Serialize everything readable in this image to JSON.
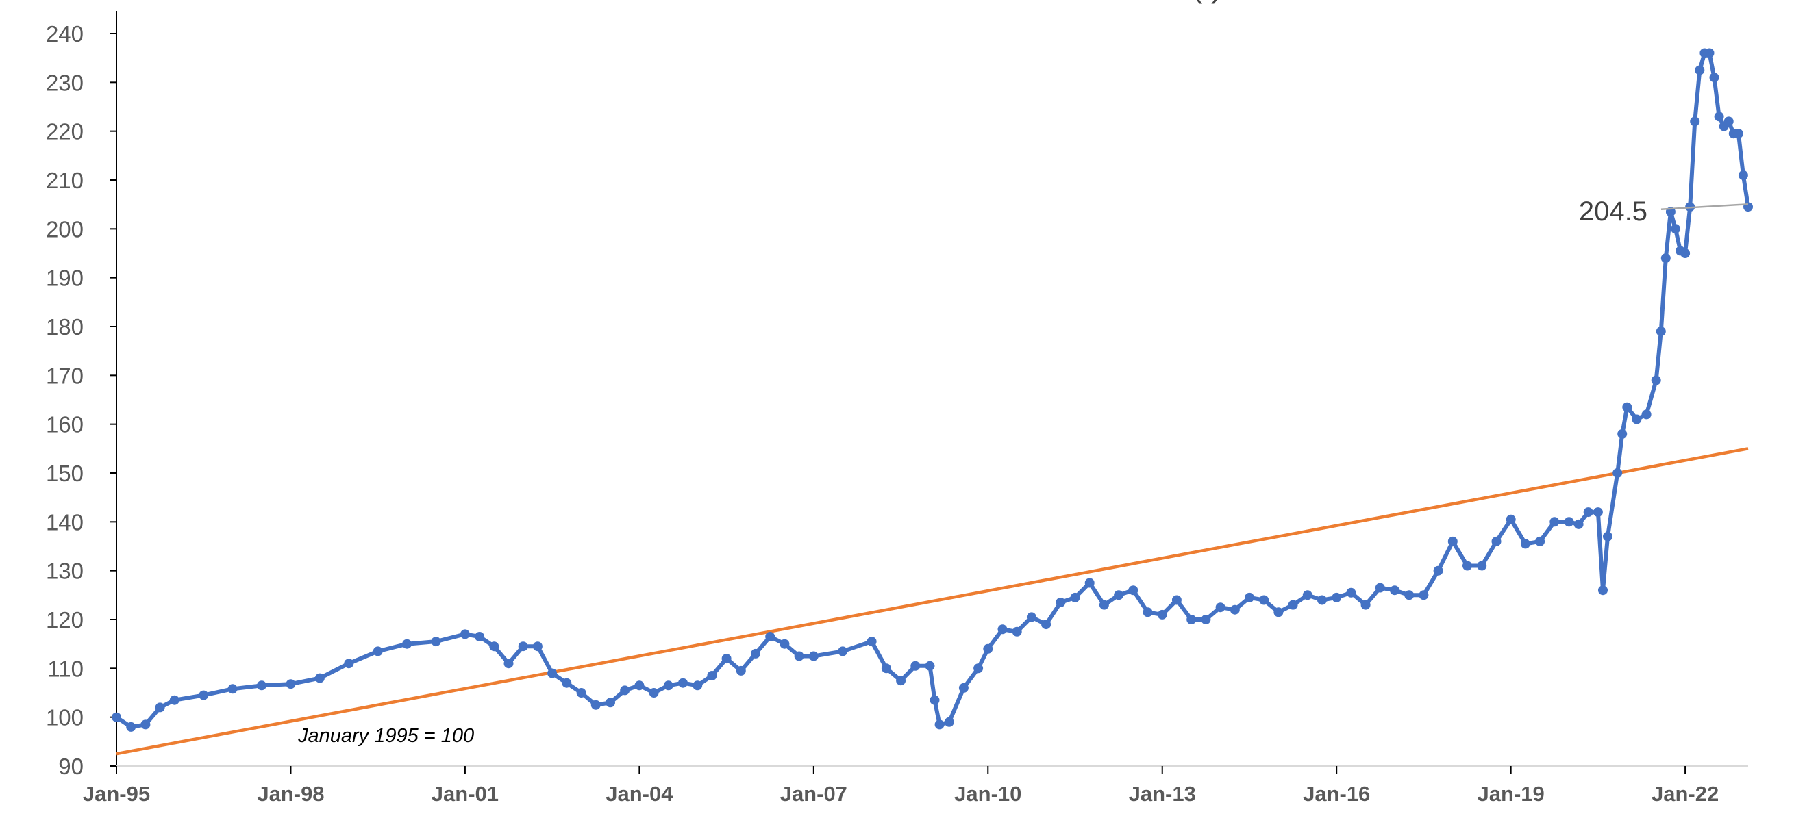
{
  "chart_data": {
    "type": "line",
    "title_fragment": "(                    )",
    "xlabel": "",
    "ylabel": "",
    "x_tick_labels": [
      "Jan-95",
      "Jan-98",
      "Jan-01",
      "Jan-04",
      "Jan-07",
      "Jan-10",
      "Jan-13",
      "Jan-16",
      "Jan-19",
      "Jan-22"
    ],
    "y_tick_labels": [
      "90",
      "100",
      "110",
      "120",
      "130",
      "140",
      "150",
      "160",
      "170",
      "180",
      "190",
      "200",
      "210",
      "220",
      "230",
      "240"
    ],
    "ylim": [
      90,
      240
    ],
    "xlim": [
      "1995-01",
      "2022-10"
    ],
    "grid": false,
    "annotation": "January 1995 = 100",
    "end_label": "204.5",
    "colors": {
      "index": "#4472C4",
      "trend": "#ED7D31",
      "leader": "#A6A6A6"
    },
    "series": [
      {
        "style": "line-with-markers",
        "color": "#4472C4",
        "points": [
          [
            "1995-01",
            100
          ],
          [
            "1995-04",
            98
          ],
          [
            "1995-07",
            98.5
          ],
          [
            "1995-10",
            102
          ],
          [
            "1996-01",
            103.5
          ],
          [
            "1996-07",
            104.5
          ],
          [
            "1997-01",
            105.8
          ],
          [
            "1997-07",
            106.5
          ],
          [
            "1998-01",
            106.8
          ],
          [
            "1998-07",
            108
          ],
          [
            "1999-01",
            111
          ],
          [
            "1999-07",
            113.5
          ],
          [
            "2000-01",
            115
          ],
          [
            "2000-07",
            115.5
          ],
          [
            "2001-01",
            117
          ],
          [
            "2001-04",
            116.5
          ],
          [
            "2001-07",
            114.5
          ],
          [
            "2001-10",
            111
          ],
          [
            "2002-01",
            114.5
          ],
          [
            "2002-04",
            114.5
          ],
          [
            "2002-07",
            109
          ],
          [
            "2002-10",
            107
          ],
          [
            "2003-01",
            105
          ],
          [
            "2003-04",
            102.5
          ],
          [
            "2003-07",
            103
          ],
          [
            "2003-10",
            105.5
          ],
          [
            "2004-01",
            106.5
          ],
          [
            "2004-04",
            105
          ],
          [
            "2004-07",
            106.5
          ],
          [
            "2004-10",
            107
          ],
          [
            "2005-01",
            106.5
          ],
          [
            "2005-04",
            108.5
          ],
          [
            "2005-07",
            112
          ],
          [
            "2005-10",
            109.5
          ],
          [
            "2006-01",
            113
          ],
          [
            "2006-04",
            116.5
          ],
          [
            "2006-07",
            115
          ],
          [
            "2006-10",
            112.5
          ],
          [
            "2007-01",
            112.5
          ],
          [
            "2007-07",
            113.5
          ],
          [
            "2008-01",
            115.5
          ],
          [
            "2008-04",
            110
          ],
          [
            "2008-07",
            107.5
          ],
          [
            "2008-10",
            110.5
          ],
          [
            "2009-01",
            110.5
          ],
          [
            "2009-02",
            103.5
          ],
          [
            "2009-03",
            98.5
          ],
          [
            "2009-05",
            99
          ],
          [
            "2009-08",
            106
          ],
          [
            "2009-11",
            110
          ],
          [
            "2010-01",
            114
          ],
          [
            "2010-04",
            118
          ],
          [
            "2010-07",
            117.5
          ],
          [
            "2010-10",
            120.5
          ],
          [
            "2011-01",
            119
          ],
          [
            "2011-04",
            123.5
          ],
          [
            "2011-07",
            124.5
          ],
          [
            "2011-10",
            127.5
          ],
          [
            "2012-01",
            123
          ],
          [
            "2012-04",
            125
          ],
          [
            "2012-07",
            126
          ],
          [
            "2012-10",
            121.5
          ],
          [
            "2013-01",
            121
          ],
          [
            "2013-04",
            124
          ],
          [
            "2013-07",
            120
          ],
          [
            "2013-10",
            120
          ],
          [
            "2014-01",
            122.5
          ],
          [
            "2014-04",
            122
          ],
          [
            "2014-07",
            124.5
          ],
          [
            "2014-10",
            124
          ],
          [
            "2015-01",
            121.5
          ],
          [
            "2015-04",
            123
          ],
          [
            "2015-07",
            125
          ],
          [
            "2015-10",
            124
          ],
          [
            "2016-01",
            124.5
          ],
          [
            "2016-04",
            125.5
          ],
          [
            "2016-07",
            123
          ],
          [
            "2016-10",
            126.5
          ],
          [
            "2017-01",
            126
          ],
          [
            "2017-04",
            125
          ],
          [
            "2017-07",
            125
          ],
          [
            "2017-10",
            130
          ],
          [
            "2018-01",
            136
          ],
          [
            "2018-04",
            131
          ],
          [
            "2018-07",
            131
          ],
          [
            "2018-10",
            136
          ],
          [
            "2019-01",
            140.5
          ],
          [
            "2019-04",
            135.5
          ],
          [
            "2019-07",
            136
          ],
          [
            "2019-10",
            140
          ],
          [
            "2020-01",
            140
          ],
          [
            "2020-03",
            139.5
          ],
          [
            "2020-05",
            142
          ],
          [
            "2020-07",
            142
          ],
          [
            "2020-08",
            126
          ],
          [
            "2020-09",
            137
          ],
          [
            "2020-11",
            150
          ],
          [
            "2020-12",
            158
          ],
          [
            "2021-01",
            163.5
          ],
          [
            "2021-03",
            161
          ],
          [
            "2021-05",
            162
          ],
          [
            "2021-07",
            169
          ],
          [
            "2021-08",
            179
          ],
          [
            "2021-09",
            194
          ],
          [
            "2021-10",
            203.5
          ],
          [
            "2021-11",
            200
          ],
          [
            "2021-12",
            195.5
          ],
          [
            "2022-01",
            195
          ],
          [
            "2022-02",
            204.5
          ],
          [
            "2022-03",
            222
          ],
          [
            "2022-04",
            232.5
          ],
          [
            "2022-05",
            236
          ],
          [
            "2022-06",
            236
          ],
          [
            "2022-07",
            231
          ],
          [
            "2022-08",
            223
          ],
          [
            "2022-09",
            221
          ],
          [
            "2022-10",
            222
          ],
          [
            "2022-11",
            219.5
          ],
          [
            "2022-12",
            219.5
          ],
          [
            "2023-01",
            211
          ],
          [
            "2023-02",
            204.5
          ]
        ]
      },
      {
        "style": "trendline",
        "color": "#ED7D31",
        "points": [
          [
            "1995-01",
            92.5
          ],
          [
            "2023-02",
            155
          ]
        ]
      }
    ]
  }
}
